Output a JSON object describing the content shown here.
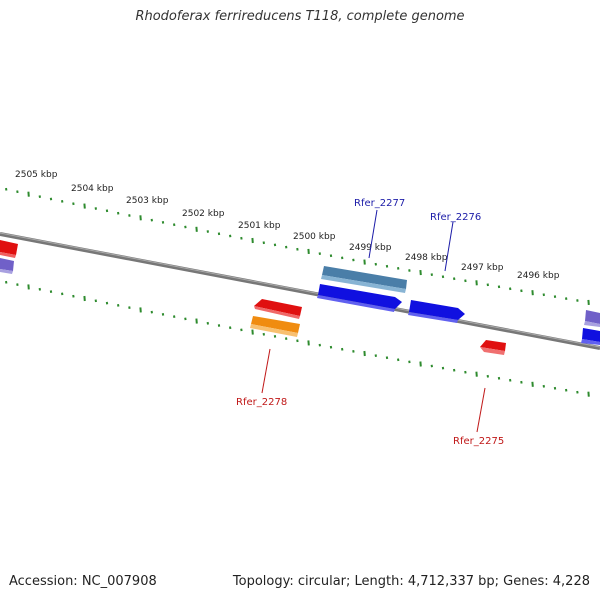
{
  "title": "Rhodoferax ferrireducens T118, complete genome",
  "accession_text": "Accession: NC_007908",
  "summary_text": "Topology: circular; Length: 4,712,337 bp; Genes: 4,228",
  "scale_labels": [
    "2505 kbp",
    "2504 kbp",
    "2503 kbp",
    "2502 kbp",
    "2501 kbp",
    "2500 kbp",
    "2499 kbp",
    "2498 kbp",
    "2497 kbp",
    "2496 kbp"
  ],
  "gene_labels": {
    "rfer_2277": "Rfer_2277",
    "rfer_2276": "Rfer_2276",
    "rfer_2278": "Rfer_2278",
    "rfer_2275": "Rfer_2275"
  },
  "colors": {
    "backbone": "#777777",
    "ticks": "#2e8b2e",
    "label_forward": "#1c1ca8",
    "label_reverse": "#c01818",
    "gene_blue": "#1010e0",
    "gene_steel": "#4a7ea8",
    "gene_red": "#e01010",
    "gene_orange": "#f08c10",
    "gene_purple": "#7060c8"
  }
}
